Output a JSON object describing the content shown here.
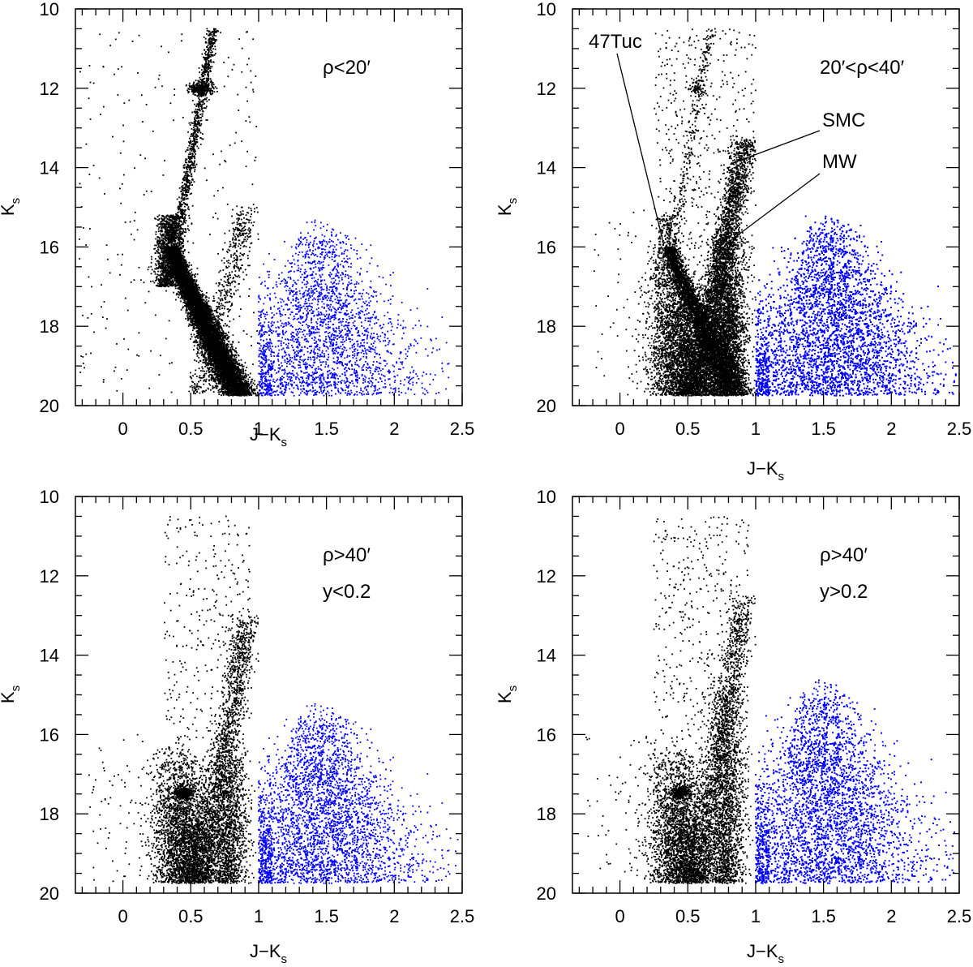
{
  "colors": {
    "black_points": "#000000",
    "blue_points": "#0000ff"
  },
  "axis_text": {
    "x_title": "J−K",
    "x_title_sub": "s",
    "y_title": "K",
    "y_title_sub": "s"
  },
  "chart_data": [
    {
      "type": "scatter",
      "panel": "top-left",
      "xlim": [
        -0.35,
        2.5
      ],
      "ylim": [
        20,
        10
      ],
      "x_ticks": [
        "0",
        "0.5",
        "1",
        "1.5",
        "2",
        "2.5"
      ],
      "y_ticks": [
        "10",
        "12",
        "14",
        "16",
        "18",
        "20"
      ],
      "annotations": [
        {
          "text": "ρ<20′"
        }
      ],
      "labels": [],
      "series": [
        {
          "color": "black",
          "x_range": [
            -0.35,
            1.0
          ],
          "features": [
            "main sequence turnoff near 0.35, 16.5",
            "giant branch to 0.65, 10.5",
            "red clump at 0.55, 12"
          ]
        },
        {
          "color": "blue",
          "x_range": [
            1.0,
            2.4
          ],
          "k_range": [
            15.3,
            19.7
          ]
        }
      ]
    },
    {
      "type": "scatter",
      "panel": "top-right",
      "xlim": [
        -0.35,
        2.5
      ],
      "ylim": [
        20,
        10
      ],
      "x_ticks": [
        "0",
        "0.5",
        "1",
        "1.5",
        "2",
        "2.5"
      ],
      "y_ticks": [
        "10",
        "12",
        "14",
        "16",
        "18",
        "20"
      ],
      "annotations": [
        {
          "text": "20′<ρ<40′"
        }
      ],
      "labels": [
        {
          "text": "47Tuc",
          "x": 0.32,
          "y": 15.9
        },
        {
          "text": "SMC",
          "x": 0.82,
          "y": 13.9
        },
        {
          "text": "MW",
          "x": 0.83,
          "y": 15.8
        }
      ],
      "series": [
        {
          "color": "black",
          "x_range": [
            -0.2,
            1.0
          ]
        },
        {
          "color": "blue",
          "x_range": [
            1.0,
            2.45
          ],
          "k_range": [
            15.3,
            19.7
          ]
        }
      ]
    },
    {
      "type": "scatter",
      "panel": "bottom-left",
      "xlim": [
        -0.35,
        2.5
      ],
      "ylim": [
        20,
        10
      ],
      "x_ticks": [
        "0",
        "0.5",
        "1",
        "1.5",
        "2",
        "2.5"
      ],
      "y_ticks": [
        "10",
        "12",
        "14",
        "16",
        "18",
        "20"
      ],
      "annotations": [
        {
          "text": "ρ>40′"
        },
        {
          "text": "y<0.2"
        }
      ],
      "labels": [],
      "series": [
        {
          "color": "black",
          "x_range": [
            -0.2,
            1.0
          ]
        },
        {
          "color": "blue",
          "x_range": [
            1.0,
            2.45
          ],
          "k_range": [
            15.0,
            19.7
          ]
        }
      ]
    },
    {
      "type": "scatter",
      "panel": "bottom-right",
      "xlim": [
        -0.35,
        2.5
      ],
      "ylim": [
        20,
        10
      ],
      "x_ticks": [
        "0",
        "0.5",
        "1",
        "1.5",
        "2",
        "2.5"
      ],
      "y_ticks": [
        "10",
        "12",
        "14",
        "16",
        "18",
        "20"
      ],
      "annotations": [
        {
          "text": "ρ>40′"
        },
        {
          "text": "y>0.2"
        }
      ],
      "labels": [],
      "series": [
        {
          "color": "black",
          "x_range": [
            -0.2,
            1.0
          ]
        },
        {
          "color": "blue",
          "x_range": [
            1.0,
            2.45
          ],
          "k_range": [
            14.5,
            19.7
          ]
        }
      ]
    }
  ]
}
